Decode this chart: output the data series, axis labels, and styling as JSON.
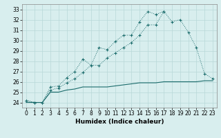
{
  "xlabel": "Humidex (Indice chaleur)",
  "x": [
    0,
    1,
    2,
    3,
    4,
    5,
    6,
    7,
    8,
    9,
    10,
    11,
    12,
    13,
    14,
    15,
    16,
    17,
    18,
    19,
    20,
    21,
    22,
    23
  ],
  "line_upper": [
    24.2,
    24.0,
    24.0,
    25.5,
    25.6,
    26.4,
    27.0,
    28.2,
    27.6,
    29.3,
    29.1,
    29.9,
    30.5,
    30.5,
    31.8,
    32.8,
    32.5,
    32.8,
    null,
    null,
    null,
    null,
    null,
    null
  ],
  "line_mid": [
    24.2,
    24.0,
    24.0,
    25.2,
    25.4,
    25.9,
    26.3,
    26.9,
    27.6,
    27.6,
    28.3,
    28.8,
    29.3,
    29.8,
    30.5,
    31.5,
    31.5,
    32.8,
    31.8,
    32.0,
    30.8,
    29.3,
    26.8,
    26.3
  ],
  "line_lower": [
    24.0,
    24.0,
    24.0,
    25.0,
    25.0,
    25.2,
    25.3,
    25.5,
    25.5,
    25.5,
    25.5,
    25.6,
    25.7,
    25.8,
    25.9,
    25.9,
    25.9,
    26.0,
    26.0,
    26.0,
    26.0,
    26.0,
    26.1,
    26.1
  ],
  "line_color": "#1a6b6b",
  "bg_color": "#d8eeee",
  "grid_color": "#b8d8d8",
  "ylim": [
    23.5,
    33.5
  ],
  "xlim": [
    -0.5,
    23.5
  ],
  "yticks": [
    24,
    25,
    26,
    27,
    28,
    29,
    30,
    31,
    32,
    33
  ],
  "xticks": [
    0,
    1,
    2,
    3,
    4,
    5,
    6,
    7,
    8,
    9,
    10,
    11,
    12,
    13,
    14,
    15,
    16,
    17,
    18,
    19,
    20,
    21,
    22,
    23
  ],
  "tick_fontsize": 5.5,
  "xlabel_fontsize": 6.5
}
